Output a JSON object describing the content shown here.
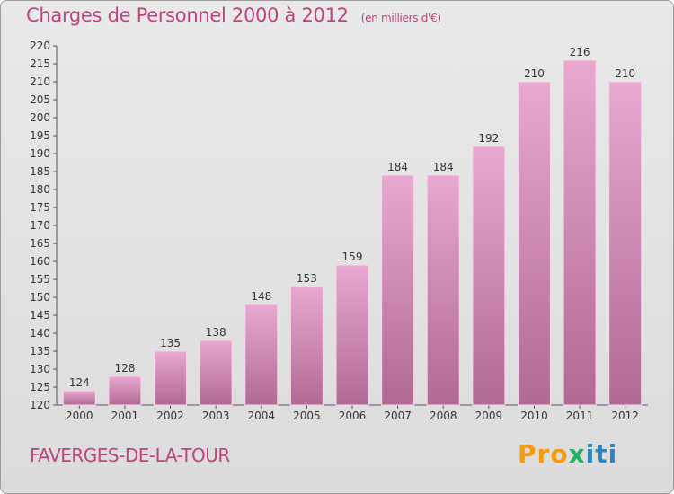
{
  "header": {
    "title": "Charges de Personnel 2000 à 2012",
    "subtitle": "(en milliers d'€)"
  },
  "footer": {
    "commune": "FAVERGES-DE-LA-TOUR",
    "logo_text": "Proxiti"
  },
  "colors": {
    "title": "#c0427e",
    "bar_top": "#e8a8d0",
    "bar_bottom": "#b06a94",
    "bar_edge": "#f7d6ea"
  },
  "chart_data": {
    "type": "bar",
    "title": "Charges de Personnel 2000 à 2012",
    "subtitle": "(en milliers d'€)",
    "xlabel": "",
    "ylabel": "",
    "categories": [
      "2000",
      "2001",
      "2002",
      "2003",
      "2004",
      "2005",
      "2006",
      "2007",
      "2008",
      "2009",
      "2010",
      "2011",
      "2012"
    ],
    "values": [
      124,
      128,
      135,
      138,
      148,
      153,
      159,
      184,
      184,
      192,
      210,
      216,
      210
    ],
    "ylim": [
      120,
      220
    ],
    "ytick_step": 5,
    "grid": false
  }
}
